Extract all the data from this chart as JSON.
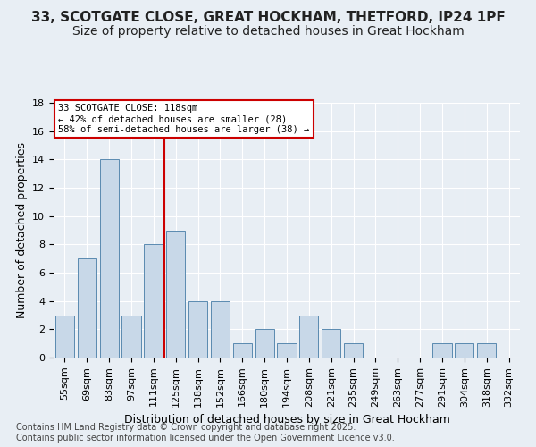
{
  "title_line1": "33, SCOTGATE CLOSE, GREAT HOCKHAM, THETFORD, IP24 1PF",
  "title_line2": "Size of property relative to detached houses in Great Hockham",
  "xlabel": "Distribution of detached houses by size in Great Hockham",
  "ylabel": "Number of detached properties",
  "footnote_line1": "Contains HM Land Registry data © Crown copyright and database right 2025.",
  "footnote_line2": "Contains public sector information licensed under the Open Government Licence v3.0.",
  "categories": [
    "55sqm",
    "69sqm",
    "83sqm",
    "97sqm",
    "111sqm",
    "125sqm",
    "138sqm",
    "152sqm",
    "166sqm",
    "180sqm",
    "194sqm",
    "208sqm",
    "221sqm",
    "235sqm",
    "249sqm",
    "263sqm",
    "277sqm",
    "291sqm",
    "304sqm",
    "318sqm",
    "332sqm"
  ],
  "values": [
    3,
    7,
    14,
    3,
    8,
    9,
    4,
    4,
    1,
    2,
    1,
    3,
    2,
    1,
    0,
    0,
    0,
    1,
    1,
    1,
    0
  ],
  "bar_color": "#c8d8e8",
  "bar_edge_color": "#5a8ab0",
  "vline_x": 4.5,
  "vline_color": "#cc0000",
  "annotation_line1": "33 SCOTGATE CLOSE: 118sqm",
  "annotation_line2": "← 42% of detached houses are smaller (28)",
  "annotation_line3": "58% of semi-detached houses are larger (38) →",
  "annotation_box_color": "#ffffff",
  "annotation_box_edge": "#cc0000",
  "ylim": [
    0,
    18
  ],
  "yticks": [
    0,
    2,
    4,
    6,
    8,
    10,
    12,
    14,
    16,
    18
  ],
  "bg_color": "#e8eef4",
  "plot_bg_color": "#e8eef4",
  "grid_color": "#ffffff",
  "title_fontsize": 11,
  "subtitle_fontsize": 10,
  "tick_fontsize": 8,
  "label_fontsize": 9,
  "footnote_fontsize": 7
}
